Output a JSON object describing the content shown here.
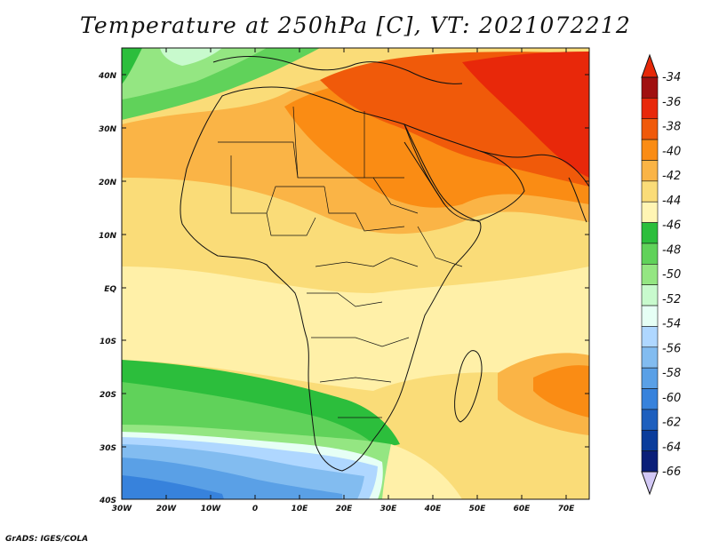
{
  "title": "Temperature at 250hPa [C], VT: 2021072212",
  "footer": "GrADS: IGES/COLA",
  "map": {
    "lat_labels": [
      "40N",
      "30N",
      "20N",
      "10N",
      "EQ",
      "10S",
      "20S",
      "30S",
      "40S"
    ],
    "lon_labels": [
      "30W",
      "20W",
      "10W",
      "0",
      "10E",
      "20E",
      "30E",
      "40E",
      "50E",
      "60E",
      "70E"
    ],
    "region": "Africa and Middle East",
    "lon_range": [
      -30,
      75
    ],
    "lat_range": [
      -40,
      45
    ]
  },
  "colorbar": {
    "labels": [
      "-34",
      "-36",
      "-38",
      "-40",
      "-42",
      "-44",
      "-46",
      "-48",
      "-50",
      "-52",
      "-54",
      "-56",
      "-58",
      "-60",
      "-62",
      "-64",
      "-66"
    ],
    "colors": [
      "#a01010",
      "#e8280a",
      "#f05a0a",
      "#fa8c14",
      "#fab446",
      "#fadc78",
      "#fff5b4",
      "#2cbe3c",
      "#60d25a",
      "#94e682",
      "#c8facd",
      "#e6fff5",
      "#afd7ff",
      "#82bcf0",
      "#5aa0e6",
      "#3782dc",
      "#1e5fbe",
      "#0a3c9b",
      "#0a1e78"
    ],
    "top_arrow_color": "#e62808",
    "bottom_arrow_color": "#d2c8f5"
  }
}
